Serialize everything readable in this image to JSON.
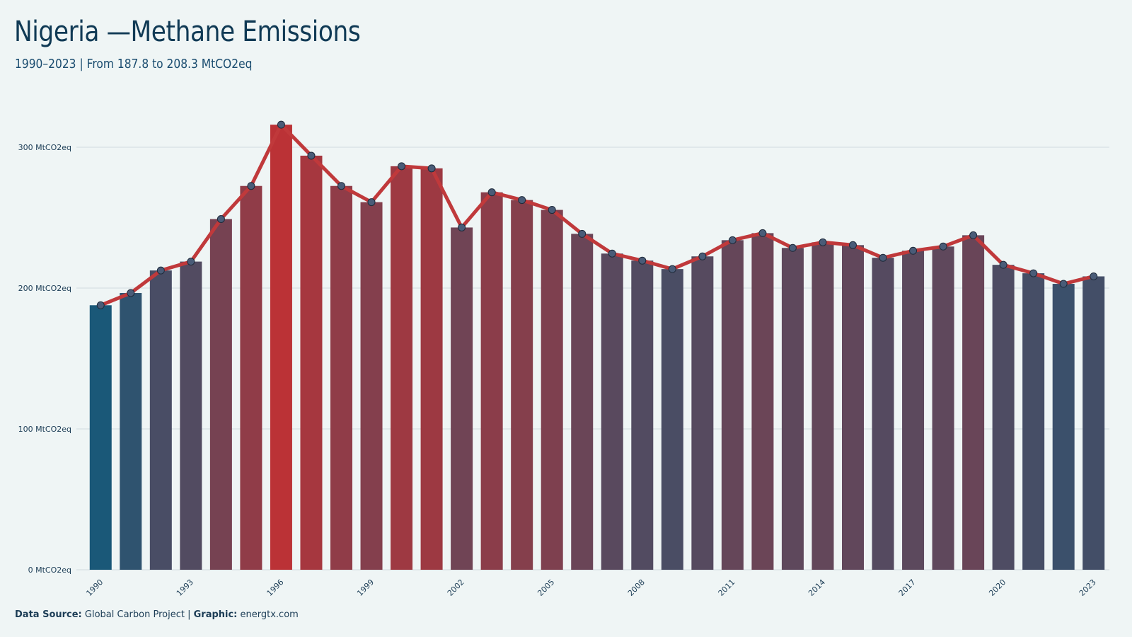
{
  "header": {
    "title": "Nigeria —Methane Emissions",
    "subtitle": "1990–2023 | From 187.8 to 208.3 MtCO2eq"
  },
  "footer": {
    "source_label": "Data Source:",
    "source_value": "Global Carbon Project |",
    "graphic_label": "Graphic:",
    "graphic_value": "energtx.com"
  },
  "colors": {
    "low": "#1a5878",
    "high": "#bb3236",
    "line": "#c0393b",
    "marker_fill": "#4a5c78",
    "grid": "#d6e0e4",
    "axis_text": "#1b3c55"
  },
  "chart_data": {
    "type": "bar",
    "title": "Nigeria —Methane Emissions",
    "subtitle": "1990–2023 | From 187.8 to 208.3 MtCO2eq",
    "x": [
      1990,
      1991,
      1992,
      1993,
      1994,
      1995,
      1996,
      1997,
      1998,
      1999,
      2000,
      2001,
      2002,
      2003,
      2004,
      2005,
      2006,
      2007,
      2008,
      2009,
      2010,
      2011,
      2012,
      2013,
      2014,
      2015,
      2016,
      2017,
      2018,
      2019,
      2020,
      2021,
      2022,
      2023
    ],
    "series": [
      {
        "values": [
          187.8,
          196.5,
          212.5,
          218.8,
          249.0,
          272.5,
          316.0,
          294.0,
          272.5,
          261.0,
          286.5,
          285.0,
          243.0,
          268.0,
          262.5,
          255.5,
          238.5,
          224.5,
          219.5,
          213.5,
          222.5,
          234.0,
          239.0,
          228.5,
          232.5,
          230.5,
          221.5,
          226.5,
          229.5,
          237.5,
          216.5,
          210.5,
          203.0,
          208.3
        ]
      }
    ],
    "overlay": "line-with-markers",
    "x_tick_labels": [
      "1990",
      "1993",
      "1996",
      "1999",
      "2002",
      "2005",
      "2008",
      "2011",
      "2014",
      "2017",
      "2020",
      "2023"
    ],
    "y_tick_labels": [
      "0 MtCO2eq",
      "100 MtCO2eq",
      "200 MtCO2eq",
      "300 MtCO2eq"
    ],
    "y_ticks": [
      0,
      100,
      200,
      300
    ],
    "ylim": [
      0,
      330
    ],
    "xlabel": "",
    "ylabel": "",
    "grid": "horizontal",
    "legend": "none"
  }
}
